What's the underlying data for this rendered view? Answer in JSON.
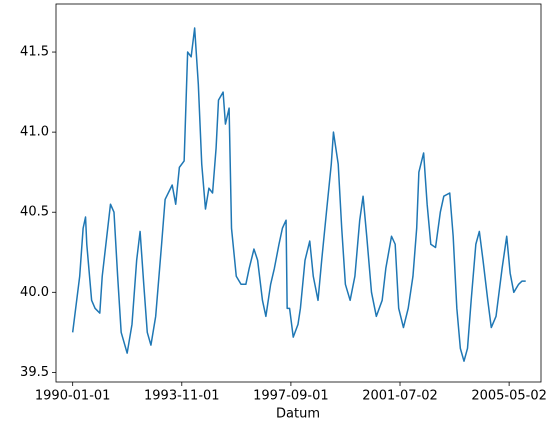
{
  "chart_data": {
    "type": "line",
    "xlabel": "Datum",
    "x": [
      "1990-01-01",
      "1990-04-01",
      "1990-05-15",
      "1990-06-15",
      "1990-07-01",
      "1990-09-01",
      "1990-10-15",
      "1990-12-15",
      "1991-01-15",
      "1991-03-15",
      "1991-05-01",
      "1991-06-15",
      "1991-08-01",
      "1991-09-15",
      "1991-12-01",
      "1992-02-01",
      "1992-04-01",
      "1992-05-15",
      "1992-07-01",
      "1992-08-15",
      "1992-10-01",
      "1992-12-01",
      "1993-02-15",
      "1993-04-01",
      "1993-07-01",
      "1993-08-15",
      "1993-10-01",
      "1993-12-01",
      "1994-01-15",
      "1994-03-01",
      "1994-04-15",
      "1994-06-01",
      "1994-07-15",
      "1994-09-01",
      "1994-10-15",
      "1994-12-01",
      "1995-01-15",
      "1995-02-15",
      "1995-04-15",
      "1995-05-15",
      "1995-07-01",
      "1995-08-01",
      "1995-10-01",
      "1995-12-01",
      "1996-02-01",
      "1996-03-15",
      "1996-05-15",
      "1996-07-01",
      "1996-09-01",
      "1996-10-15",
      "1996-12-15",
      "1997-02-01",
      "1997-04-01",
      "1997-05-15",
      "1997-07-01",
      "1997-07-15",
      "1997-08-15",
      "1997-10-01",
      "1997-12-01",
      "1998-01-01",
      "1998-03-01",
      "1998-05-01",
      "1998-06-15",
      "1998-08-15",
      "1998-10-01",
      "1998-12-01",
      "1999-02-01",
      "1999-03-01",
      "1999-05-01",
      "1999-06-15",
      "1999-08-01",
      "1999-10-01",
      "1999-12-01",
      "2000-02-01",
      "2000-03-15",
      "2000-05-01",
      "2000-07-01",
      "2000-09-01",
      "2000-11-15",
      "2001-01-01",
      "2001-03-15",
      "2001-05-01",
      "2001-06-15",
      "2001-08-15",
      "2001-10-15",
      "2001-12-15",
      "2002-02-01",
      "2002-03-01",
      "2002-05-01",
      "2002-06-15",
      "2002-08-01",
      "2002-10-01",
      "2002-12-01",
      "2003-01-15",
      "2003-04-01",
      "2003-05-15",
      "2003-07-01",
      "2003-08-15",
      "2003-10-01",
      "2003-11-15",
      "2004-01-01",
      "2004-03-01",
      "2004-04-15",
      "2004-06-01",
      "2004-08-01",
      "2004-09-15",
      "2004-11-15",
      "2005-02-01",
      "2005-04-01",
      "2005-05-15",
      "2005-07-01",
      "2005-09-01",
      "2005-10-15",
      "2005-12-01"
    ],
    "series": [
      {
        "color": "#1f77b4",
        "values": [
          39.75,
          40.1,
          40.4,
          40.47,
          40.3,
          39.95,
          39.9,
          39.87,
          40.1,
          40.35,
          40.55,
          40.5,
          40.1,
          39.75,
          39.62,
          39.8,
          40.2,
          40.38,
          40.05,
          39.75,
          39.67,
          39.85,
          40.3,
          40.58,
          40.67,
          40.55,
          40.78,
          40.82,
          41.5,
          41.47,
          41.65,
          41.3,
          40.8,
          40.52,
          40.65,
          40.62,
          40.9,
          41.2,
          41.25,
          41.05,
          41.15,
          40.4,
          40.1,
          40.05,
          40.05,
          40.15,
          40.27,
          40.2,
          39.95,
          39.85,
          40.05,
          40.15,
          40.3,
          40.4,
          40.45,
          39.9,
          39.9,
          39.72,
          39.8,
          39.9,
          40.2,
          40.32,
          40.1,
          39.95,
          40.2,
          40.5,
          40.8,
          41.0,
          40.8,
          40.4,
          40.05,
          39.95,
          40.1,
          40.45,
          40.6,
          40.35,
          40.0,
          39.85,
          39.95,
          40.15,
          40.35,
          40.3,
          39.9,
          39.78,
          39.9,
          40.1,
          40.4,
          40.75,
          40.87,
          40.55,
          40.3,
          40.28,
          40.5,
          40.6,
          40.62,
          40.35,
          39.9,
          39.65,
          39.57,
          39.65,
          39.95,
          40.3,
          40.38,
          40.2,
          39.95,
          39.78,
          39.85,
          40.15,
          40.35,
          40.12,
          40.0,
          40.05,
          40.07,
          40.07
        ]
      }
    ],
    "xlim": [
      "1989-06-01",
      "2006-06-15"
    ],
    "xticks": [
      "1990-01-01",
      "1993-11-01",
      "1997-09-01",
      "2001-07-02",
      "2005-05-02"
    ],
    "ylim": [
      39.44,
      41.8
    ],
    "yticks": [
      39.5,
      {
        "value": 40,
        "label": "40.0"
      },
      40.5,
      {
        "value": 41,
        "label": "41.0"
      },
      41.5
    ]
  }
}
